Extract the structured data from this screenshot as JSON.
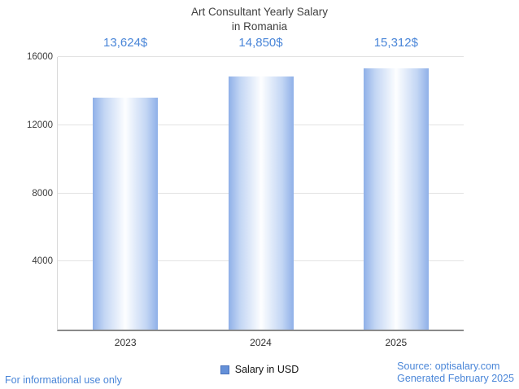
{
  "title": {
    "line1": "Art Consultant Yearly Salary",
    "line2": "in Romania"
  },
  "chart_data": {
    "type": "bar",
    "title": "Art Consultant Yearly Salary in Romania",
    "categories": [
      "2023",
      "2024",
      "2025"
    ],
    "values": [
      13624,
      14850,
      15312
    ],
    "value_labels": [
      "13,624$",
      "14,850$",
      "15,312$"
    ],
    "series_name": "Salary in USD",
    "xlabel": "",
    "ylabel": "",
    "ylim": [
      0,
      16000
    ],
    "yticks": [
      4000,
      8000,
      12000,
      16000
    ],
    "grid": true,
    "legend_position": "bottom"
  },
  "legend": {
    "label": "Salary in USD"
  },
  "footer": {
    "left": "For informational use only",
    "source": "Source: optisalary.com",
    "generated": "Generated February 2025"
  },
  "colors": {
    "bar_edge": "#8fb0e8",
    "bar_center": "#fdfeff",
    "value_label_text": "#4a86d8",
    "footer_text": "#4a86d8",
    "title_text": "#414141",
    "gridline": "#e3e3e3",
    "axis": "#8a8a8a",
    "legend_swatch": "#6490d8"
  }
}
